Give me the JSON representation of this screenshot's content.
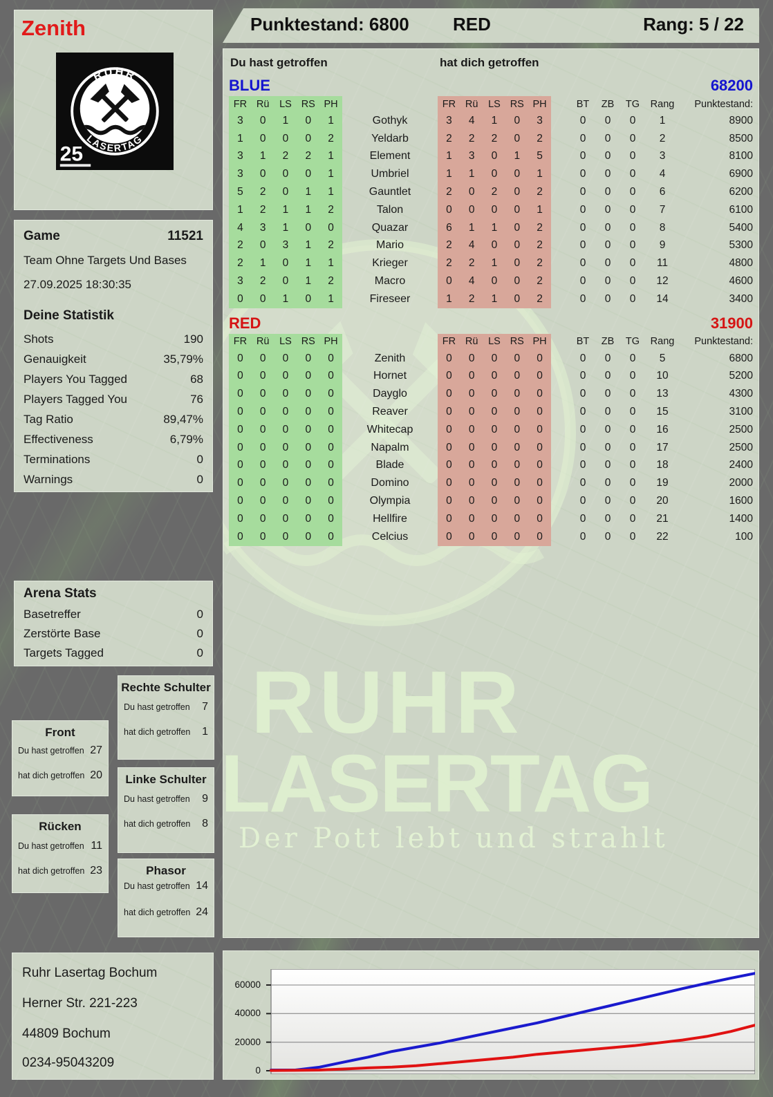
{
  "colors": {
    "team_blue": "#1414cf",
    "team_red": "#d51414",
    "cell_green": "#a6dc9d",
    "cell_red": "#d8a79a",
    "chart_blue": "#1a1acd",
    "chart_red": "#e01212",
    "panel_bg": "#cdd5c6"
  },
  "header": {
    "player_name": "Zenith",
    "punktestand": "Punktestand: 6800",
    "team": "RED",
    "rang": "Rang: 5 / 22"
  },
  "logo": {
    "arc_top": "RUHR",
    "arc_bottom": "LASERTAG",
    "badge": "25"
  },
  "game": {
    "label": "Game",
    "number": "11521",
    "mode": "Team Ohne Targets Und Bases",
    "datetime": "27.09.2025 18:30:35"
  },
  "your_stats": {
    "title": "Deine Statistik",
    "rows": [
      {
        "label": "Shots",
        "value": "190"
      },
      {
        "label": "Genauigkeit",
        "value": "35,79%"
      },
      {
        "label": "Players You Tagged",
        "value": "68"
      },
      {
        "label": "Players Tagged You",
        "value": "76"
      },
      {
        "label": "Tag Ratio",
        "value": "89,47%"
      },
      {
        "label": "Effectiveness",
        "value": "6,79%"
      },
      {
        "label": "Terminations",
        "value": "0"
      },
      {
        "label": "Warnings",
        "value": "0"
      }
    ]
  },
  "arena_stats": {
    "title": "Arena Stats",
    "rows": [
      {
        "label": "Basetreffer",
        "value": "0"
      },
      {
        "label": "Zerstörte Base",
        "value": "0"
      },
      {
        "label": "Targets Tagged",
        "value": "0"
      }
    ]
  },
  "hit_labels": {
    "du": "Du hast getroffen",
    "dich": "hat dich getroffen"
  },
  "body_parts": [
    {
      "title": "Front",
      "du": "27",
      "dich": "20"
    },
    {
      "title": "Rechte Schulter",
      "du": "7",
      "dich": "1"
    },
    {
      "title": "Rücken",
      "du": "11",
      "dich": "23"
    },
    {
      "title": "Linke Schulter",
      "du": "9",
      "dich": "8"
    },
    {
      "title": "Phasor",
      "du": "14",
      "dich": "24"
    }
  ],
  "tables": {
    "hit_cols": [
      "FR",
      "Rü",
      "LS",
      "RS",
      "PH"
    ],
    "right_cols": [
      "BT",
      "ZB",
      "TG",
      "Rang",
      "Punktestand:"
    ],
    "teams": [
      {
        "name": "BLUE",
        "total": "68200",
        "color": "#1414cf",
        "rows": [
          {
            "du": [
              "3",
              "0",
              "1",
              "0",
              "1"
            ],
            "name": "Gothyk",
            "dich": [
              "3",
              "4",
              "1",
              "0",
              "3"
            ],
            "bt": "0",
            "zb": "0",
            "tg": "0",
            "rang": "1",
            "punkte": "8900"
          },
          {
            "du": [
              "1",
              "0",
              "0",
              "0",
              "2"
            ],
            "name": "Yeldarb",
            "dich": [
              "2",
              "2",
              "2",
              "0",
              "2"
            ],
            "bt": "0",
            "zb": "0",
            "tg": "0",
            "rang": "2",
            "punkte": "8500"
          },
          {
            "du": [
              "3",
              "1",
              "2",
              "2",
              "1"
            ],
            "name": "Element",
            "dich": [
              "1",
              "3",
              "0",
              "1",
              "5"
            ],
            "bt": "0",
            "zb": "0",
            "tg": "0",
            "rang": "3",
            "punkte": "8100"
          },
          {
            "du": [
              "3",
              "0",
              "0",
              "0",
              "1"
            ],
            "name": "Umbriel",
            "dich": [
              "1",
              "1",
              "0",
              "0",
              "1"
            ],
            "bt": "0",
            "zb": "0",
            "tg": "0",
            "rang": "4",
            "punkte": "6900"
          },
          {
            "du": [
              "5",
              "2",
              "0",
              "1",
              "1"
            ],
            "name": "Gauntlet",
            "dich": [
              "2",
              "0",
              "2",
              "0",
              "2"
            ],
            "bt": "0",
            "zb": "0",
            "tg": "0",
            "rang": "6",
            "punkte": "6200"
          },
          {
            "du": [
              "1",
              "2",
              "1",
              "1",
              "2"
            ],
            "name": "Talon",
            "dich": [
              "0",
              "0",
              "0",
              "0",
              "1"
            ],
            "bt": "0",
            "zb": "0",
            "tg": "0",
            "rang": "7",
            "punkte": "6100"
          },
          {
            "du": [
              "4",
              "3",
              "1",
              "0",
              "0"
            ],
            "name": "Quazar",
            "dich": [
              "6",
              "1",
              "1",
              "0",
              "2"
            ],
            "bt": "0",
            "zb": "0",
            "tg": "0",
            "rang": "8",
            "punkte": "5400"
          },
          {
            "du": [
              "2",
              "0",
              "3",
              "1",
              "2"
            ],
            "name": "Mario",
            "dich": [
              "2",
              "4",
              "0",
              "0",
              "2"
            ],
            "bt": "0",
            "zb": "0",
            "tg": "0",
            "rang": "9",
            "punkte": "5300"
          },
          {
            "du": [
              "2",
              "1",
              "0",
              "1",
              "1"
            ],
            "name": "Krieger",
            "dich": [
              "2",
              "2",
              "1",
              "0",
              "2"
            ],
            "bt": "0",
            "zb": "0",
            "tg": "0",
            "rang": "11",
            "punkte": "4800"
          },
          {
            "du": [
              "3",
              "2",
              "0",
              "1",
              "2"
            ],
            "name": "Macro",
            "dich": [
              "0",
              "4",
              "0",
              "0",
              "2"
            ],
            "bt": "0",
            "zb": "0",
            "tg": "0",
            "rang": "12",
            "punkte": "4600"
          },
          {
            "du": [
              "0",
              "0",
              "1",
              "0",
              "1"
            ],
            "name": "Fireseer",
            "dich": [
              "1",
              "2",
              "1",
              "0",
              "2"
            ],
            "bt": "0",
            "zb": "0",
            "tg": "0",
            "rang": "14",
            "punkte": "3400"
          }
        ]
      },
      {
        "name": "RED",
        "total": "31900",
        "color": "#d51414",
        "rows": [
          {
            "du": [
              "0",
              "0",
              "0",
              "0",
              "0"
            ],
            "name": "Zenith",
            "dich": [
              "0",
              "0",
              "0",
              "0",
              "0"
            ],
            "bt": "0",
            "zb": "0",
            "tg": "0",
            "rang": "5",
            "punkte": "6800"
          },
          {
            "du": [
              "0",
              "0",
              "0",
              "0",
              "0"
            ],
            "name": "Hornet",
            "dich": [
              "0",
              "0",
              "0",
              "0",
              "0"
            ],
            "bt": "0",
            "zb": "0",
            "tg": "0",
            "rang": "10",
            "punkte": "5200"
          },
          {
            "du": [
              "0",
              "0",
              "0",
              "0",
              "0"
            ],
            "name": "Dayglo",
            "dich": [
              "0",
              "0",
              "0",
              "0",
              "0"
            ],
            "bt": "0",
            "zb": "0",
            "tg": "0",
            "rang": "13",
            "punkte": "4300"
          },
          {
            "du": [
              "0",
              "0",
              "0",
              "0",
              "0"
            ],
            "name": "Reaver",
            "dich": [
              "0",
              "0",
              "0",
              "0",
              "0"
            ],
            "bt": "0",
            "zb": "0",
            "tg": "0",
            "rang": "15",
            "punkte": "3100"
          },
          {
            "du": [
              "0",
              "0",
              "0",
              "0",
              "0"
            ],
            "name": "Whitecap",
            "dich": [
              "0",
              "0",
              "0",
              "0",
              "0"
            ],
            "bt": "0",
            "zb": "0",
            "tg": "0",
            "rang": "16",
            "punkte": "2500"
          },
          {
            "du": [
              "0",
              "0",
              "0",
              "0",
              "0"
            ],
            "name": "Napalm",
            "dich": [
              "0",
              "0",
              "0",
              "0",
              "0"
            ],
            "bt": "0",
            "zb": "0",
            "tg": "0",
            "rang": "17",
            "punkte": "2500"
          },
          {
            "du": [
              "0",
              "0",
              "0",
              "0",
              "0"
            ],
            "name": "Blade",
            "dich": [
              "0",
              "0",
              "0",
              "0",
              "0"
            ],
            "bt": "0",
            "zb": "0",
            "tg": "0",
            "rang": "18",
            "punkte": "2400"
          },
          {
            "du": [
              "0",
              "0",
              "0",
              "0",
              "0"
            ],
            "name": "Domino",
            "dich": [
              "0",
              "0",
              "0",
              "0",
              "0"
            ],
            "bt": "0",
            "zb": "0",
            "tg": "0",
            "rang": "19",
            "punkte": "2000"
          },
          {
            "du": [
              "0",
              "0",
              "0",
              "0",
              "0"
            ],
            "name": "Olympia",
            "dich": [
              "0",
              "0",
              "0",
              "0",
              "0"
            ],
            "bt": "0",
            "zb": "0",
            "tg": "0",
            "rang": "20",
            "punkte": "1600"
          },
          {
            "du": [
              "0",
              "0",
              "0",
              "0",
              "0"
            ],
            "name": "Hellfire",
            "dich": [
              "0",
              "0",
              "0",
              "0",
              "0"
            ],
            "bt": "0",
            "zb": "0",
            "tg": "0",
            "rang": "21",
            "punkte": "1400"
          },
          {
            "du": [
              "0",
              "0",
              "0",
              "0",
              "0"
            ],
            "name": "Celcius",
            "dich": [
              "0",
              "0",
              "0",
              "0",
              "0"
            ],
            "bt": "0",
            "zb": "0",
            "tg": "0",
            "rang": "22",
            "punkte": "100"
          }
        ]
      }
    ]
  },
  "address": [
    "Ruhr Lasertag Bochum",
    "Herner Str. 221-223",
    "44809 Bochum",
    "0234-95043209"
  ],
  "watermark": {
    "line1": "RUHR",
    "line2": "LASERTAG",
    "tagline": "Der Pott lebt und strahlt"
  },
  "chart_data": {
    "type": "line",
    "title": "",
    "xlabel": "",
    "ylabel": "",
    "ylim": [
      0,
      72000
    ],
    "grid": true,
    "legend_position": "none",
    "ytick_values": [
      0,
      20000,
      40000,
      60000
    ],
    "ytick_labels": [
      "0",
      "20000",
      "40000",
      "60000"
    ],
    "series": [
      {
        "name": "BLUE",
        "color": "#1a1acd",
        "values": [
          500,
          500,
          2500,
          6000,
          9500,
          13500,
          16500,
          19500,
          23000,
          26500,
          30000,
          33500,
          37500,
          41500,
          45500,
          49500,
          53500,
          57500,
          61200,
          64800,
          68200
        ]
      },
      {
        "name": "RED",
        "color": "#e01212",
        "values": [
          200,
          300,
          500,
          1200,
          2000,
          2500,
          3500,
          5000,
          6500,
          8000,
          9500,
          11500,
          13000,
          14500,
          16000,
          17500,
          19500,
          21500,
          24000,
          27500,
          31900
        ]
      }
    ]
  }
}
